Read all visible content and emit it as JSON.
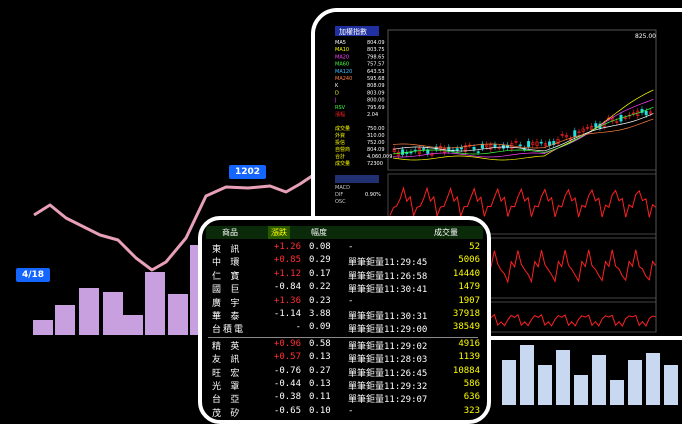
{
  "background_chart": {
    "tag_left": "4/18",
    "tag_right": "1202",
    "line_color": "#e8a0b8",
    "bar_color": "#c8a0e0"
  },
  "monitor": {
    "title": "加權指數",
    "indicators": [
      {
        "label": "MA5",
        "value": "804.09"
      },
      {
        "label": "MA10",
        "value": "803.75"
      },
      {
        "label": "MA20",
        "value": "798.65"
      },
      {
        "label": "MA60",
        "value": "757.57"
      },
      {
        "label": "MA120",
        "value": "643.53"
      },
      {
        "label": "MA240",
        "value": "595.68"
      },
      {
        "label": "K",
        "value": "808.09"
      },
      {
        "label": "D",
        "value": "803.09"
      },
      {
        "label": "J",
        "value": "800.00"
      },
      {
        "label": "RSV",
        "value": "795.69"
      },
      {
        "label": "漲幅",
        "value": "2.04"
      }
    ],
    "lower_labels": [
      "成交量",
      "外資",
      "投信",
      "自營商",
      "合計",
      "成交量"
    ],
    "lower_values": [
      "750.00",
      "310.00",
      "752.00",
      "804.09",
      "4,060,009",
      "72300"
    ],
    "top_value": "825.00",
    "panel2_labels": [
      "MACD",
      "DIF",
      "OSC"
    ],
    "panel2_value": "0.90%",
    "accent_red": "#ff2020",
    "accent_blue": "#3060ff"
  },
  "table": {
    "headers": [
      "商品",
      "漲跌",
      "幅度",
      "成交量"
    ],
    "rows": [
      {
        "name": "東 訊",
        "chg": "+1.26",
        "pct": "0.08",
        "note": "-",
        "vol": "52",
        "up": true
      },
      {
        "name": "中 環",
        "chg": "+0.85",
        "pct": "0.29",
        "note": "單筆鉅量11:29:45",
        "vol": "5006",
        "up": true
      },
      {
        "name": "仁 寶",
        "chg": "+1.12",
        "pct": "0.17",
        "note": "單筆鉅量11:26:58",
        "vol": "14440",
        "up": true
      },
      {
        "name": "國 巨",
        "chg": "-0.84",
        "pct": "0.22",
        "note": "單筆鉅量11:30:41",
        "vol": "1479",
        "up": false
      },
      {
        "name": "廣 宇",
        "chg": "+1.36",
        "pct": "0.23",
        "note": "-",
        "vol": "1907",
        "up": true
      },
      {
        "name": "華 泰",
        "chg": "-1.14",
        "pct": "3.88",
        "note": "單筆鉅量11:30:31",
        "vol": "37918",
        "up": false
      },
      {
        "name": "台積電",
        "chg": "-",
        "pct": "0.09",
        "note": "單筆鉅量11:29:00",
        "vol": "38549",
        "up": false
      },
      {
        "name": "精 英",
        "chg": "+0.96",
        "pct": "0.58",
        "note": "單筆鉅量11:29:02",
        "vol": "4916",
        "up": true
      },
      {
        "name": "友 訊",
        "chg": "+0.57",
        "pct": "0.13",
        "note": "單筆鉅量11:28:03",
        "vol": "1139",
        "up": true
      },
      {
        "name": "旺 宏",
        "chg": "-0.76",
        "pct": "0.27",
        "note": "單筆鉅量11:26:45",
        "vol": "10884",
        "up": false
      },
      {
        "name": "光 罩",
        "chg": "-0.44",
        "pct": "0.13",
        "note": "單筆鉅量11:29:32",
        "vol": "586",
        "up": false
      },
      {
        "name": "台 亞",
        "chg": "-0.38",
        "pct": "0.11",
        "note": "單筆鉅量11:29:07",
        "vol": "636",
        "up": false
      },
      {
        "name": "茂 矽",
        "chg": "-0.65",
        "pct": "0.10",
        "note": "-",
        "vol": "323",
        "up": false
      }
    ]
  }
}
